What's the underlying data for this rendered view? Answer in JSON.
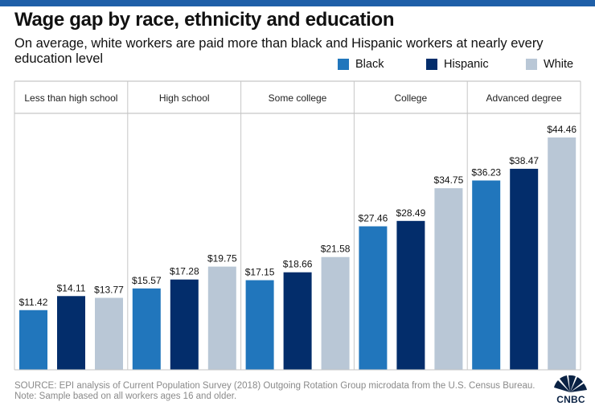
{
  "header": {
    "title": "Wage gap by race, ethnicity and education",
    "subtitle": "On average, white workers are paid more than black and Hispanic workers at nearly every education level"
  },
  "chart_data": {
    "type": "bar",
    "categories": [
      "Less than high school",
      "High school",
      "Some college",
      "College",
      "Advanced degree"
    ],
    "series": [
      {
        "name": "Black",
        "color": "#2176bc",
        "values": [
          11.42,
          15.57,
          17.15,
          27.46,
          36.23
        ],
        "labels": [
          "$11.42",
          "$15.57",
          "$17.15",
          "$27.46",
          "$36.23"
        ]
      },
      {
        "name": "Hispanic",
        "color": "#032d6b",
        "values": [
          14.11,
          17.28,
          18.66,
          28.49,
          38.47
        ],
        "labels": [
          "$14.11",
          "$17.28",
          "$18.66",
          "$28.49",
          "$38.47"
        ]
      },
      {
        "name": "White",
        "color": "#b9c7d6",
        "values": [
          13.77,
          19.75,
          21.58,
          34.75,
          44.46
        ],
        "labels": [
          "$13.77",
          "$19.75",
          "$21.58",
          "$34.75",
          "$44.46"
        ]
      }
    ],
    "ylim": [
      0,
      50
    ],
    "legend_position": "top-right",
    "grid": false
  },
  "footer": {
    "source": "SOURCE: EPI analysis of Current Population Survey (2018) Outgoing Rotation Group microdata from the U.S. Census Bureau.",
    "note": "Note: Sample based on all workers ages 16 and older."
  },
  "brand": {
    "logo_text": "CNBC",
    "icon": "cnbc-peacock-icon"
  }
}
